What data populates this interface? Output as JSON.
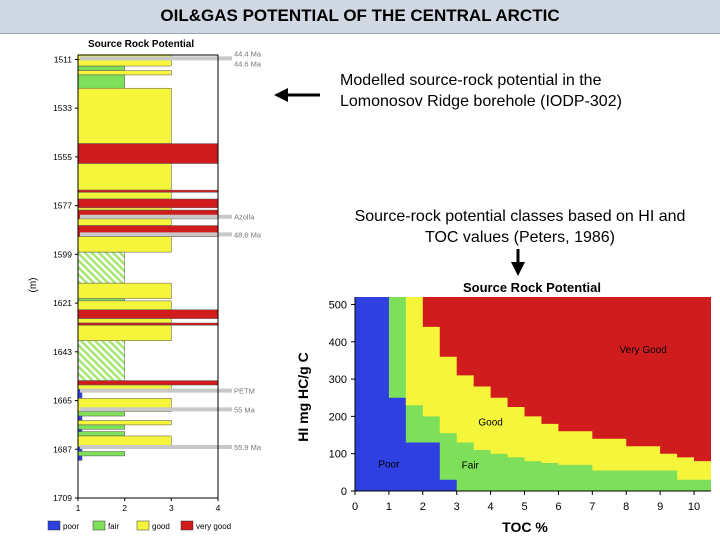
{
  "page_title": "OIL&GAS POTENTIAL OF THE CENTRAL ARCTIC",
  "captions": {
    "borehole": [
      "Modelled source-rock potential in the",
      "Lomonosov Ridge borehole (IODP-302)"
    ],
    "classes": [
      "Source-rock potential classes based on HI and",
      "TOC values (Peters, 1986)"
    ]
  },
  "colors": {
    "poor": "#2f3fe0",
    "fair": "#7ee05a",
    "good": "#f5f53c",
    "very_good": "#d01c1c",
    "hatch": "#a6e874"
  },
  "chart_data": [
    {
      "type": "bar",
      "title": "Source Rock Potential",
      "ylabel": "(m)",
      "yticks": [
        1511,
        1533,
        1555,
        1577,
        1599,
        1621,
        1643,
        1665,
        1687,
        1709
      ],
      "ylim": [
        1509,
        1709
      ],
      "xticks": [
        1,
        2,
        3,
        4
      ],
      "xlim": [
        1,
        4
      ],
      "legend_position": "bottom",
      "legend": [
        {
          "label": "poor",
          "value": 1,
          "color": "poor"
        },
        {
          "label": "fair",
          "value": 2,
          "color": "fair"
        },
        {
          "label": "good",
          "value": 3,
          "color": "good"
        },
        {
          "label": "very good",
          "value": 4,
          "color": "very_good"
        }
      ],
      "intervals": [
        {
          "top": 1509,
          "bottom": 1511,
          "value": 3
        },
        {
          "top": 1511,
          "bottom": 1514,
          "value": 3
        },
        {
          "top": 1514,
          "bottom": 1516,
          "value": 2
        },
        {
          "top": 1516,
          "bottom": 1518,
          "value": 3
        },
        {
          "top": 1518,
          "bottom": 1524,
          "value": 2
        },
        {
          "top": 1524,
          "bottom": 1549,
          "value": 3
        },
        {
          "top": 1549,
          "bottom": 1558,
          "value": 4
        },
        {
          "top": 1558,
          "bottom": 1570,
          "value": 3
        },
        {
          "top": 1570,
          "bottom": 1571,
          "value": 4
        },
        {
          "top": 1571,
          "bottom": 1574,
          "value": 3
        },
        {
          "top": 1574,
          "bottom": 1578,
          "value": 4
        },
        {
          "top": 1578,
          "bottom": 1579,
          "value": 3
        },
        {
          "top": 1579,
          "bottom": 1583,
          "value": 4
        },
        {
          "top": 1583,
          "bottom": 1586,
          "value": 3
        },
        {
          "top": 1586,
          "bottom": 1591,
          "value": 4
        },
        {
          "top": 1591,
          "bottom": 1598,
          "value": 3
        },
        {
          "top": 1598,
          "bottom": 1612,
          "value": 2,
          "hatched": true
        },
        {
          "top": 1612,
          "bottom": 1619,
          "value": 3
        },
        {
          "top": 1619,
          "bottom": 1620,
          "value": 2
        },
        {
          "top": 1620,
          "bottom": 1624,
          "value": 3
        },
        {
          "top": 1624,
          "bottom": 1628,
          "value": 4
        },
        {
          "top": 1628,
          "bottom": 1630,
          "value": 3
        },
        {
          "top": 1630,
          "bottom": 1631,
          "value": 4
        },
        {
          "top": 1631,
          "bottom": 1638,
          "value": 3
        },
        {
          "top": 1638,
          "bottom": 1656,
          "value": 2,
          "hatched": true
        },
        {
          "top": 1656,
          "bottom": 1658,
          "value": 4
        },
        {
          "top": 1658,
          "bottom": 1660,
          "value": 3
        },
        {
          "top": 1660,
          "bottom": 1664,
          "value": 1
        },
        {
          "top": 1664,
          "bottom": 1670,
          "value": 3
        },
        {
          "top": 1670,
          "bottom": 1672,
          "value": 2
        },
        {
          "top": 1672,
          "bottom": 1674,
          "value": 1
        },
        {
          "top": 1674,
          "bottom": 1676,
          "value": 3
        },
        {
          "top": 1676,
          "bottom": 1678,
          "value": 2
        },
        {
          "top": 1678,
          "bottom": 1679,
          "value": 1
        },
        {
          "top": 1679,
          "bottom": 1681,
          "value": 2
        },
        {
          "top": 1681,
          "bottom": 1686,
          "value": 3
        },
        {
          "top": 1686,
          "bottom": 1688,
          "value": 1
        },
        {
          "top": 1688,
          "bottom": 1690,
          "value": 2
        },
        {
          "top": 1690,
          "bottom": 1692,
          "value": 1
        }
      ],
      "horizons": [
        {
          "depth": 1510.5,
          "labels": [
            "44.4 Ma",
            "44.6 Ma"
          ]
        },
        {
          "depth": 1582,
          "labels": [
            "Azolla"
          ]
        },
        {
          "depth": 1590,
          "labels": [
            "48.6 Ma"
          ]
        },
        {
          "depth": 1660.5,
          "labels": [
            "PETM"
          ]
        },
        {
          "depth": 1669,
          "labels": [
            "55 Ma"
          ]
        },
        {
          "depth": 1686,
          "labels": [
            "55.9 Ma"
          ]
        }
      ]
    },
    {
      "type": "heatmap",
      "title": "Source Rock Potential",
      "xlabel": "TOC %",
      "ylabel": "HI mg HC/g C",
      "xlim": [
        0,
        10.5
      ],
      "ylim": [
        0,
        520
      ],
      "xticks": [
        0,
        1,
        2,
        3,
        4,
        5,
        6,
        7,
        8,
        9,
        10
      ],
      "yticks": [
        0,
        100,
        200,
        300,
        400,
        500
      ],
      "region_labels": [
        {
          "label": "Very Good",
          "x": 8.5,
          "y": 370
        },
        {
          "label": "Good",
          "x": 4.0,
          "y": 175
        },
        {
          "label": "Fair",
          "x": 3.4,
          "y": 60
        },
        {
          "label": "Poor",
          "x": 1.0,
          "y": 63
        }
      ],
      "boundaries": {
        "fair": {
          "x": [
            0,
            0.5,
            1,
            1.5,
            2,
            2.5,
            3,
            10.5
          ],
          "y": [
            520,
            520,
            250,
            130,
            130,
            30,
            0,
            0
          ]
        },
        "good": {
          "x": [
            0,
            1,
            1.5,
            2,
            2.5,
            3,
            3.5,
            4,
            4.5,
            5,
            5.5,
            6,
            7,
            8,
            9,
            9.5,
            10,
            10.5
          ],
          "y": [
            520,
            520,
            230,
            200,
            155,
            130,
            110,
            100,
            90,
            80,
            75,
            70,
            55,
            55,
            55,
            30,
            30,
            30
          ]
        },
        "very_good": {
          "x": [
            0,
            1.5,
            2,
            2.5,
            3,
            3.5,
            4,
            4.5,
            5,
            5.5,
            6,
            7,
            8,
            9,
            9.5,
            10,
            10.5
          ],
          "y": [
            520,
            520,
            440,
            360,
            310,
            280,
            250,
            225,
            200,
            180,
            160,
            140,
            120,
            100,
            90,
            80,
            80
          ]
        }
      }
    }
  ]
}
